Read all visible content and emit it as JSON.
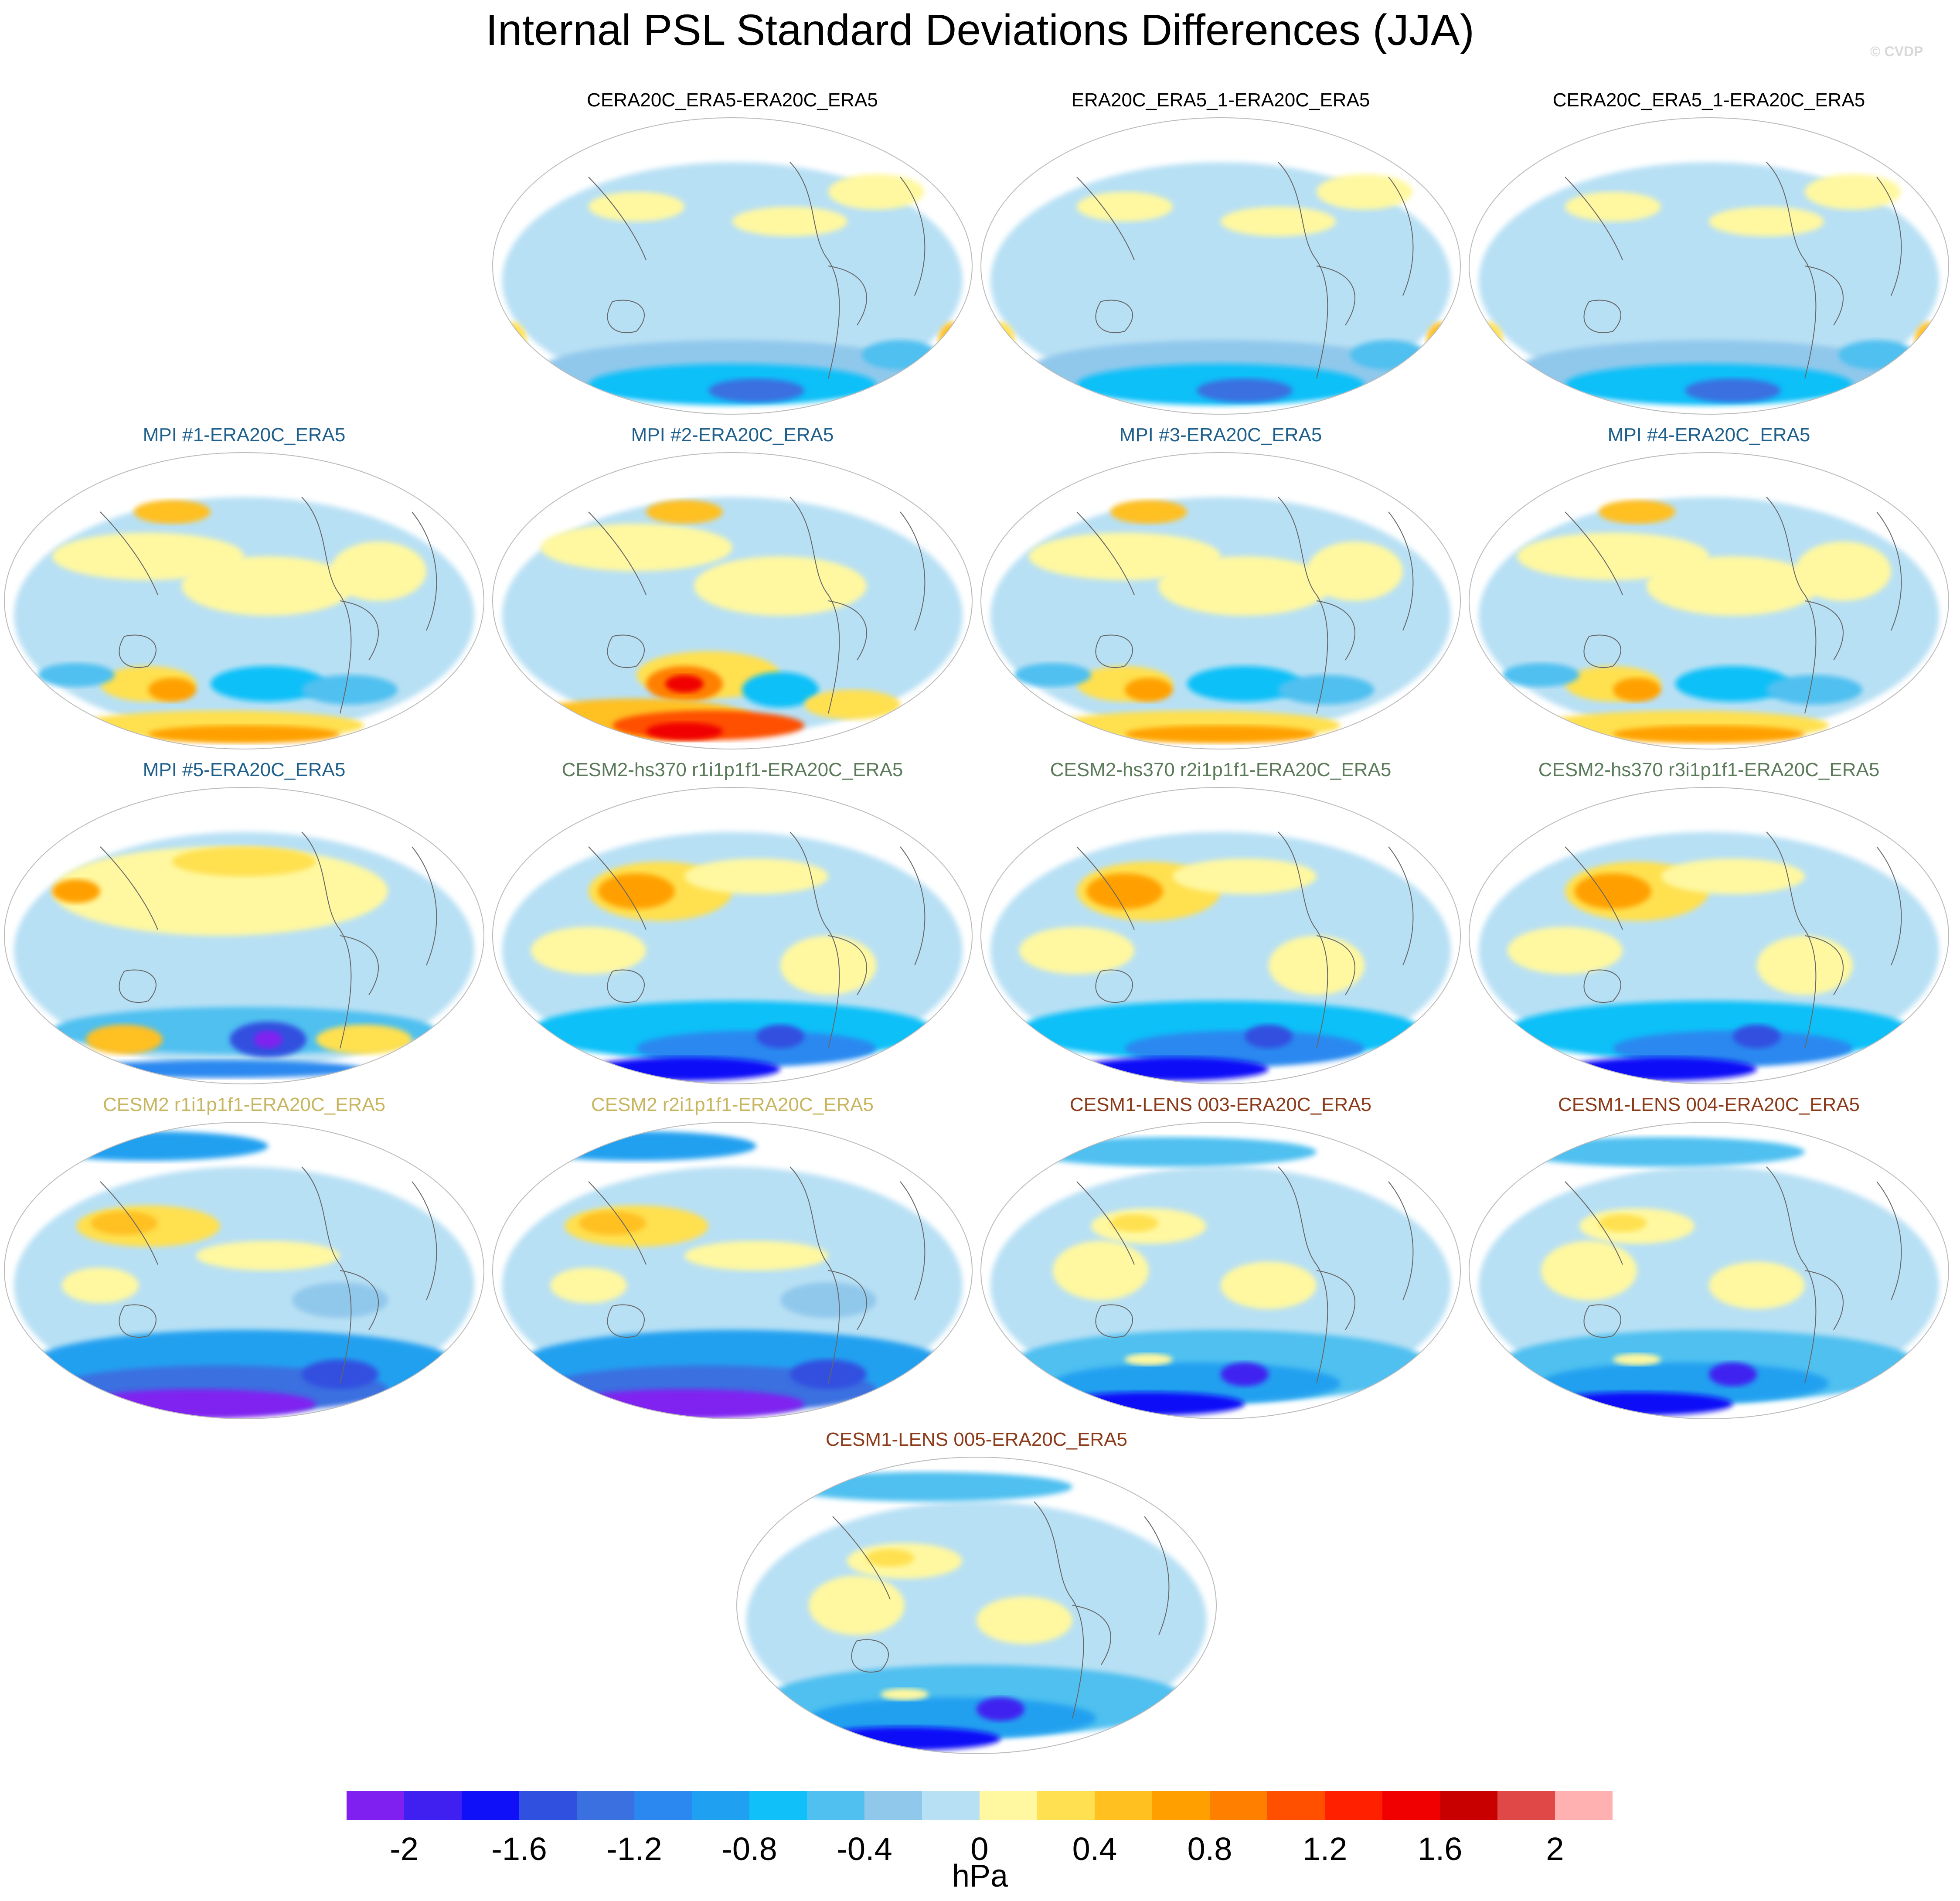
{
  "figure": {
    "title": "Internal PSL Standard Deviations Differences (JJA)",
    "credit": "© CVDP",
    "units": "hPa"
  },
  "panels": [
    {
      "title": "CERA20C_ERA5-ERA20C_ERA5",
      "color": "#000000",
      "row": 0,
      "col": 1,
      "theme": "lowvar"
    },
    {
      "title": "ERA20C_ERA5_1-ERA20C_ERA5",
      "color": "#000000",
      "row": 0,
      "col": 2,
      "theme": "lowvar"
    },
    {
      "title": "CERA20C_ERA5_1-ERA20C_ERA5",
      "color": "#000000",
      "row": 0,
      "col": 3,
      "theme": "lowvar"
    },
    {
      "title": "MPI #1-ERA20C_ERA5",
      "color": "#1f5f8b",
      "row": 1,
      "col": 0,
      "theme": "mpi"
    },
    {
      "title": "MPI #2-ERA20C_ERA5",
      "color": "#1f5f8b",
      "row": 1,
      "col": 1,
      "theme": "mpi-hot"
    },
    {
      "title": "MPI #3-ERA20C_ERA5",
      "color": "#1f5f8b",
      "row": 1,
      "col": 2,
      "theme": "mpi"
    },
    {
      "title": "MPI #4-ERA20C_ERA5",
      "color": "#1f5f8b",
      "row": 1,
      "col": 3,
      "theme": "mpi"
    },
    {
      "title": "MPI #5-ERA20C_ERA5",
      "color": "#1f5f8b",
      "row": 2,
      "col": 0,
      "theme": "mpi5"
    },
    {
      "title": "CESM2-hs370 r1i1p1f1-ERA20C_ERA5",
      "color": "#5a7a5a",
      "row": 2,
      "col": 1,
      "theme": "cesm"
    },
    {
      "title": "CESM2-hs370 r2i1p1f1-ERA20C_ERA5",
      "color": "#5a7a5a",
      "row": 2,
      "col": 2,
      "theme": "cesm"
    },
    {
      "title": "CESM2-hs370 r3i1p1f1-ERA20C_ERA5",
      "color": "#5a7a5a",
      "row": 2,
      "col": 3,
      "theme": "cesm"
    },
    {
      "title": "CESM2 r1i1p1f1-ERA20C_ERA5",
      "color": "#c8b560",
      "row": 3,
      "col": 0,
      "theme": "cesm2"
    },
    {
      "title": "CESM2 r2i1p1f1-ERA20C_ERA5",
      "color": "#c8b560",
      "row": 3,
      "col": 1,
      "theme": "cesm2"
    },
    {
      "title": "CESM1-LENS 003-ERA20C_ERA5",
      "color": "#8b3a1a",
      "row": 3,
      "col": 2,
      "theme": "lens"
    },
    {
      "title": "CESM1-LENS 004-ERA20C_ERA5",
      "color": "#8b3a1a",
      "row": 3,
      "col": 3,
      "theme": "lens"
    },
    {
      "title": "CESM1-LENS 005-ERA20C_ERA5",
      "color": "#8b3a1a",
      "row": 4,
      "col": 1.5,
      "theme": "lens"
    }
  ],
  "colorbar": {
    "colors": [
      "#8020f0",
      "#4020f0",
      "#1010f8",
      "#3050e0",
      "#3a70e0",
      "#2a88f0",
      "#20a0f0",
      "#10c0f8",
      "#50c0f0",
      "#90c8ec",
      "#b8e0f4",
      "#fff8a0",
      "#ffe050",
      "#ffc020",
      "#ffa000",
      "#ff8000",
      "#ff5000",
      "#ff2000",
      "#f00000",
      "#c80000",
      "#e04848",
      "#ffb0b0"
    ],
    "tick_labels": [
      "-2",
      "-1.6",
      "-1.2",
      "-0.8",
      "-0.4",
      "0",
      "0.4",
      "0.8",
      "1.2",
      "1.6",
      "2"
    ],
    "tick_positions_box": [
      1,
      3,
      5,
      7,
      9,
      11,
      13,
      15,
      17,
      19,
      21
    ]
  }
}
